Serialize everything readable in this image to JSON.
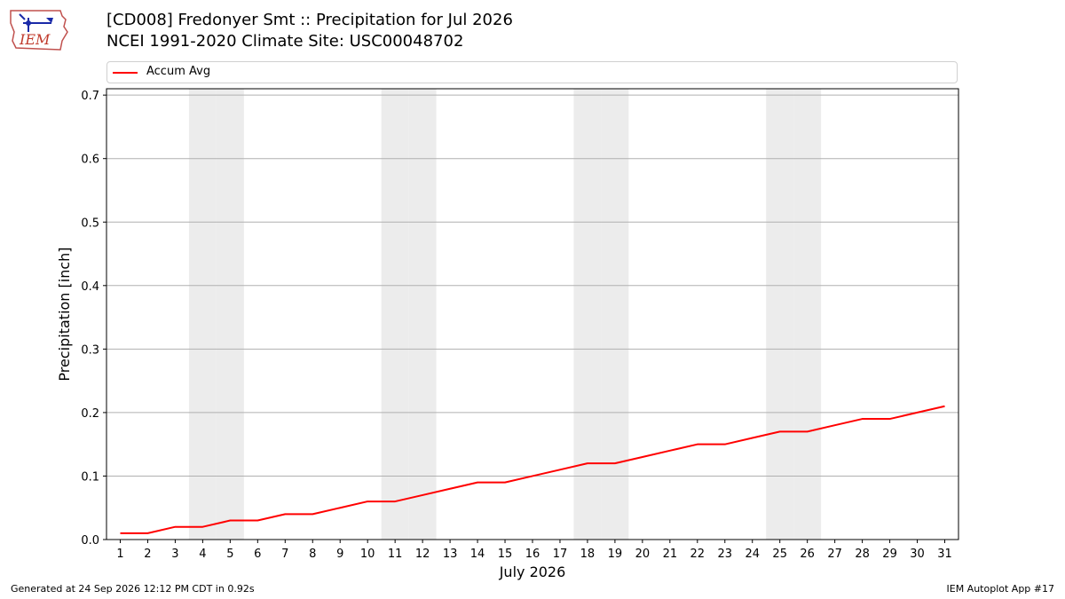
{
  "header": {
    "title": "[CD008] Fredonyer Smt :: Precipitation for Jul 2026",
    "subtitle": "NCEI 1991-2020 Climate Site: USC00048702",
    "logo_text": "IEM"
  },
  "footer": {
    "generated": "Generated at 24 Sep 2026 12:12 PM CDT in 0.92s",
    "app": "IEM Autoplot App #17"
  },
  "chart_data": {
    "type": "line",
    "title": "[CD008] Fredonyer Smt :: Precipitation for Jul 2026",
    "subtitle": "NCEI 1991-2020 Climate Site: USC00048702",
    "xlabel": "July 2026",
    "ylabel": "Precipitation [inch]",
    "x": [
      1,
      2,
      3,
      4,
      5,
      6,
      7,
      8,
      9,
      10,
      11,
      12,
      13,
      14,
      15,
      16,
      17,
      18,
      19,
      20,
      21,
      22,
      23,
      24,
      25,
      26,
      27,
      28,
      29,
      30,
      31
    ],
    "xlim": [
      0.5,
      31.5
    ],
    "ylim": [
      0,
      0.71
    ],
    "yticks": [
      0.0,
      0.1,
      0.2,
      0.3,
      0.4,
      0.5,
      0.6,
      0.7
    ],
    "ytick_labels": [
      "0.0",
      "0.1",
      "0.2",
      "0.3",
      "0.4",
      "0.5",
      "0.6",
      "0.7"
    ],
    "grid": "horizontal",
    "legend": "top",
    "series": [
      {
        "name": "Accum Avg",
        "color": "#ff0000",
        "values": [
          0.01,
          0.01,
          0.02,
          0.02,
          0.03,
          0.03,
          0.04,
          0.04,
          0.05,
          0.06,
          0.06,
          0.07,
          0.08,
          0.09,
          0.09,
          0.1,
          0.11,
          0.12,
          0.12,
          0.13,
          0.14,
          0.15,
          0.15,
          0.16,
          0.17,
          0.17,
          0.18,
          0.19,
          0.19,
          0.2,
          0.21
        ]
      }
    ],
    "weekend_days": [
      4,
      5,
      11,
      12,
      18,
      19,
      25,
      26
    ],
    "weekend_color": "#ececec",
    "grid_color": "#b0b0b0"
  }
}
